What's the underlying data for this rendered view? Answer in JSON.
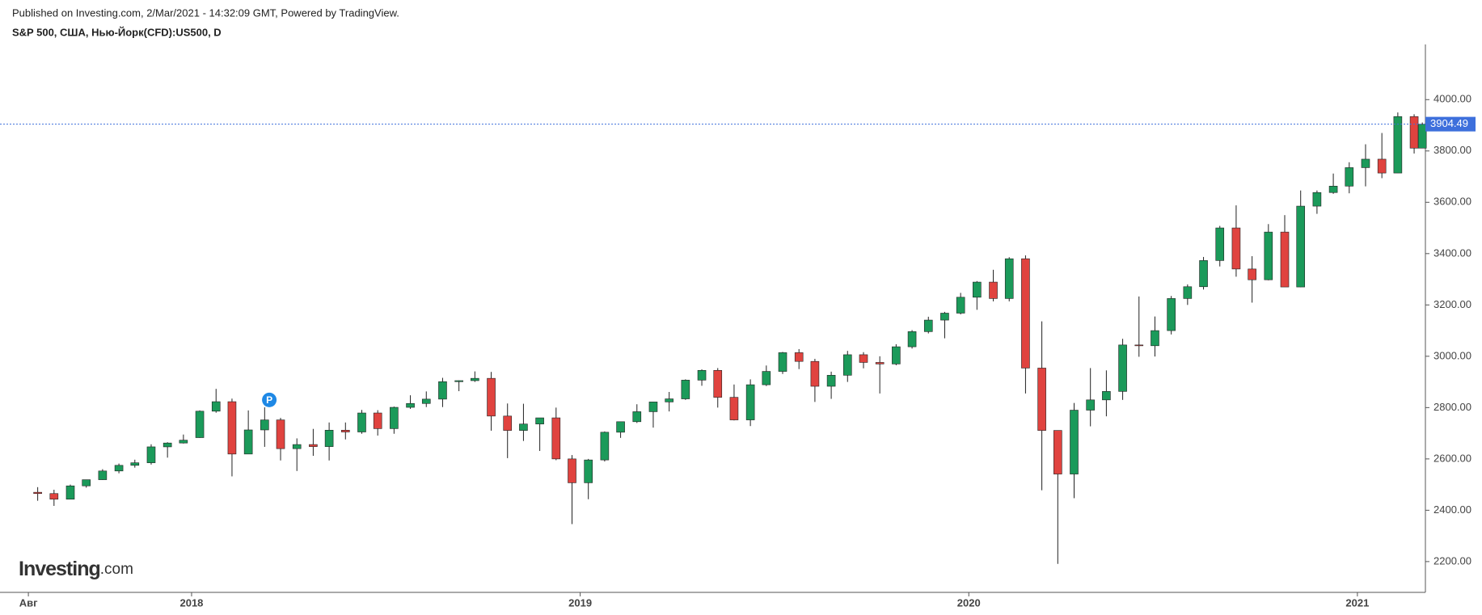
{
  "header": {
    "published": "Published on Investing.com, 2/Mar/2021 - 14:32:09 GMT, Powered by TradingView."
  },
  "logo": {
    "name": "Investing",
    "suffix": ".com"
  },
  "chart_data": {
    "type": "candlestick",
    "title": "S&P 500, США, Нью-Йорк(CFD):US500, D",
    "x": [
      2017.604,
      2017.646,
      2017.688,
      2017.729,
      2017.771,
      2017.813,
      2017.854,
      2017.896,
      2017.938,
      2017.979,
      2018.021,
      2018.063,
      2018.104,
      2018.146,
      2018.188,
      2018.229,
      2018.271,
      2018.313,
      2018.354,
      2018.396,
      2018.438,
      2018.479,
      2018.521,
      2018.563,
      2018.604,
      2018.646,
      2018.688,
      2018.729,
      2018.771,
      2018.813,
      2018.854,
      2018.896,
      2018.938,
      2018.979,
      2019.021,
      2019.063,
      2019.104,
      2019.146,
      2019.188,
      2019.229,
      2019.271,
      2019.313,
      2019.354,
      2019.396,
      2019.438,
      2019.479,
      2019.521,
      2019.563,
      2019.604,
      2019.646,
      2019.688,
      2019.729,
      2019.771,
      2019.813,
      2019.854,
      2019.896,
      2019.938,
      2019.979,
      2020.021,
      2020.063,
      2020.104,
      2020.146,
      2020.188,
      2020.229,
      2020.271,
      2020.313,
      2020.354,
      2020.396,
      2020.438,
      2020.479,
      2020.521,
      2020.563,
      2020.604,
      2020.646,
      2020.688,
      2020.729,
      2020.771,
      2020.813,
      2020.854,
      2020.896,
      2020.938,
      2020.979,
      2021.021,
      2021.063,
      2021.104,
      2021.146,
      2021.167
    ],
    "open": [
      2470,
      2465,
      2443,
      2495,
      2519,
      2553,
      2575,
      2585,
      2647,
      2662,
      2683,
      2786,
      2823,
      2619,
      2713,
      2752,
      2640,
      2656,
      2648,
      2712,
      2705,
      2779,
      2718,
      2801,
      2816,
      2833,
      2901,
      2905,
      2914,
      2767,
      2711,
      2736,
      2760,
      2600,
      2507,
      2596,
      2704,
      2745,
      2784,
      2822,
      2834,
      2907,
      2945,
      2840,
      2752,
      2889,
      2941,
      3014,
      2980,
      2883,
      2926,
      3006,
      2976,
      2970,
      3037,
      3096,
      3141,
      3168,
      3230,
      3289,
      3225,
      3380,
      2954,
      2711,
      2541,
      2790,
      2830,
      2863,
      3044,
      3041,
      3100,
      3225,
      3271,
      3373,
      3500,
      3340,
      3298,
      3484,
      3270,
      3585,
      3638,
      3663,
      3735,
      3768,
      3714,
      3934,
      3811
    ],
    "high": [
      2490,
      2480,
      2500,
      2519,
      2560,
      2582,
      2597,
      2657,
      2665,
      2695,
      2789,
      2873,
      2835,
      2789,
      2801,
      2760,
      2680,
      2717,
      2742,
      2742,
      2791,
      2790,
      2804,
      2848,
      2863,
      2916,
      2906,
      2941,
      2939,
      2816,
      2815,
      2746,
      2800,
      2615,
      2600,
      2707,
      2745,
      2813,
      2822,
      2861,
      2910,
      2949,
      2954,
      2890,
      2910,
      2964,
      3017,
      3028,
      2990,
      2940,
      3021,
      3016,
      3000,
      3047,
      3102,
      3154,
      3173,
      3247,
      3293,
      3337,
      3386,
      3393,
      3136,
      2711,
      2818,
      2954,
      2945,
      3068,
      3233,
      3155,
      3235,
      3280,
      3387,
      3508,
      3588,
      3390,
      3515,
      3550,
      3646,
      3646,
      3712,
      3756,
      3826,
      3870,
      3950,
      3943,
      3911
    ],
    "low": [
      2437,
      2417,
      2446,
      2488,
      2518,
      2544,
      2566,
      2578,
      2605,
      2660,
      2682,
      2780,
      2532,
      2620,
      2647,
      2594,
      2553,
      2612,
      2594,
      2676,
      2698,
      2691,
      2698,
      2795,
      2802,
      2802,
      2864,
      2900,
      2710,
      2603,
      2670,
      2631,
      2595,
      2346,
      2443,
      2590,
      2682,
      2740,
      2722,
      2785,
      2830,
      2885,
      2800,
      2750,
      2728,
      2884,
      2931,
      2950,
      2822,
      2834,
      2900,
      2953,
      2855,
      2965,
      3030,
      3089,
      3070,
      3163,
      3181,
      3214,
      3214,
      2855,
      2478,
      2191,
      2447,
      2727,
      2766,
      2830,
      2998,
      2999,
      3085,
      3200,
      3260,
      3350,
      3310,
      3209,
      3296,
      3270,
      3269,
      3555,
      3633,
      3635,
      3662,
      3694,
      3714,
      3790,
      3811
    ],
    "close": [
      2465,
      2443,
      2495,
      2519,
      2553,
      2575,
      2585,
      2647,
      2662,
      2673,
      2786,
      2823,
      2619,
      2713,
      2752,
      2640,
      2656,
      2648,
      2712,
      2705,
      2779,
      2718,
      2801,
      2816,
      2833,
      2901,
      2905,
      2914,
      2767,
      2711,
      2736,
      2760,
      2600,
      2507,
      2596,
      2704,
      2745,
      2784,
      2822,
      2834,
      2907,
      2945,
      2840,
      2752,
      2889,
      2941,
      3014,
      2980,
      2883,
      2926,
      3006,
      2976,
      2970,
      3037,
      3096,
      3141,
      3168,
      3230,
      3289,
      3225,
      3380,
      2954,
      2711,
      2541,
      2790,
      2830,
      2863,
      3044,
      3041,
      3100,
      3225,
      3271,
      3373,
      3500,
      3340,
      3298,
      3484,
      3270,
      3585,
      3638,
      3663,
      3735,
      3768,
      3714,
      3934,
      3811,
      3904
    ],
    "up_color": "#1b9a5a",
    "down_color": "#e0433f",
    "xlim": [
      2017.507,
      2021.175
    ],
    "xticks": [
      {
        "value": 2017.58,
        "label": "Авг"
      },
      2018,
      2019,
      2020,
      2021
    ],
    "ylim": [
      2080,
      4215
    ],
    "yticks": [
      {
        "value": 2200,
        "label": "2200.00"
      },
      {
        "value": 2400,
        "label": "2400.00"
      },
      {
        "value": 2600,
        "label": "2600.00"
      },
      {
        "value": 2800,
        "label": "2800.00"
      },
      {
        "value": 3000,
        "label": "3000.00"
      },
      {
        "value": 3200,
        "label": "3200.00"
      },
      {
        "value": 3400,
        "label": "3400.00"
      },
      {
        "value": 3600,
        "label": "3600.00"
      },
      {
        "value": 3800,
        "label": "3800.00"
      },
      {
        "value": 4000,
        "label": "4000.00"
      }
    ],
    "last_price": 3904.49,
    "last_price_color": "#3d6fdc",
    "annotations": [
      {
        "text": "P",
        "x": 2018.2,
        "y": 2830
      }
    ]
  }
}
